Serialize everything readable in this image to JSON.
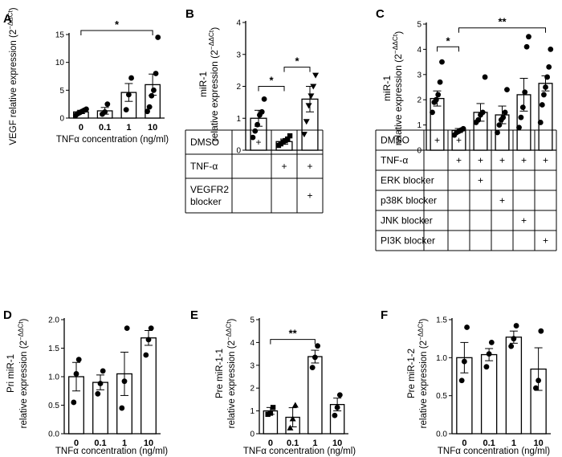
{
  "panels": [
    {
      "letter": "A",
      "ylabel": "VEGF relative expression (2",
      "ysup": "−ΔΔCt",
      "ylabel_tail": ")",
      "xlabel": "TNFα concentration (ng/ml)"
    },
    {
      "letter": "B",
      "ylabel_lines": [
        "miR-1",
        "relative expression (2"
      ],
      "ysup": "−ΔΔCt",
      "ylabel_tail": ")"
    },
    {
      "letter": "C",
      "ylabel_lines": [
        "miR-1",
        "relative expression (2"
      ],
      "ysup": "−ΔΔCt",
      "ylabel_tail": ")"
    },
    {
      "letter": "D",
      "ylabel_lines": [
        "Pri miR-1",
        "relative expression (2"
      ],
      "ysup": "−ΔΔCt",
      "ylabel_tail": ")",
      "xlabel": "TNFα concentration (ng/ml)"
    },
    {
      "letter": "E",
      "ylabel_lines": [
        "Pre miR-1-1",
        "relative expression (2"
      ],
      "ysup": "−ΔΔCt",
      "ylabel_tail": ")",
      "xlabel": "TNFα concentration (ng/ml)"
    },
    {
      "letter": "F",
      "ylabel_lines": [
        "Pre miR-1-2",
        "relative expression (2"
      ],
      "ysup": "−ΔΔCt",
      "ylabel_tail": ")",
      "xlabel": "TNFα concentration (ng/ml)"
    }
  ],
  "table_B": {
    "rows": [
      "DMSO",
      "TNF-α",
      "VEGFR2 blocker"
    ],
    "row_lines": [
      [
        "DMSO"
      ],
      [
        "TNF-α"
      ],
      [
        "VEGFR2",
        "blocker"
      ]
    ],
    "marks": [
      [
        "+",
        "+",
        ""
      ],
      [
        "",
        "+",
        "+"
      ],
      [
        "",
        "",
        "+"
      ]
    ],
    "plus": "+"
  },
  "table_C": {
    "rows": [
      "DMSO",
      "TNF-α",
      "ERK blocker",
      "p38K blocker",
      "JNK blocker",
      "PI3K blocker"
    ],
    "marks": [
      [
        "+",
        "+",
        "",
        "",
        "",
        ""
      ],
      [
        "",
        "+",
        "+",
        "+",
        "+",
        "+"
      ],
      [
        "",
        "",
        "+",
        "",
        "",
        ""
      ],
      [
        "",
        "",
        "",
        "+",
        "",
        ""
      ],
      [
        "",
        "",
        "",
        "",
        "+",
        ""
      ],
      [
        "",
        "",
        "",
        "",
        "",
        "+"
      ]
    ]
  },
  "chart_data": [
    {
      "panel": "A",
      "type": "bar",
      "categories": [
        "0",
        "0.1",
        "1",
        "10"
      ],
      "values": [
        1.1,
        1.3,
        4.6,
        6.0
      ],
      "errors": [
        0.3,
        0.6,
        1.6,
        1.9
      ],
      "points": [
        [
          0.5,
          0.8,
          1.0,
          1.2,
          1.4,
          1.6
        ],
        [
          0.7,
          1.1,
          2.5
        ],
        [
          1.5,
          4.2,
          7.2
        ],
        [
          1.2,
          2.0,
          4.0,
          5.0,
          8.0,
          14.5
        ]
      ],
      "ylim": [
        0,
        15
      ],
      "yticks": [
        "0",
        "5",
        "10",
        "15"
      ],
      "xlabel": "TNFα concentration (ng/ml)",
      "significance": [
        {
          "from": 0,
          "to": 3,
          "label": "*"
        }
      ]
    },
    {
      "panel": "B",
      "type": "bar",
      "categories": [
        "",
        "",
        ""
      ],
      "values": [
        1.0,
        0.27,
        1.6
      ],
      "errors": [
        0.25,
        0.08,
        0.4
      ],
      "points": [
        [
          0.4,
          0.6,
          0.8,
          1.1,
          1.2,
          1.6
        ],
        [
          0.15,
          0.2,
          0.25,
          0.3,
          0.35,
          0.45
        ],
        [
          0.5,
          0.9,
          1.4,
          1.7,
          2.0,
          2.35
        ]
      ],
      "point_shapes": [
        "circle",
        "square",
        "triangle-down"
      ],
      "ylim": [
        0,
        4
      ],
      "yticks": [
        "0",
        "1",
        "2",
        "3",
        "4"
      ],
      "significance": [
        {
          "from": 0,
          "to": 1,
          "label": "*"
        },
        {
          "from": 1,
          "to": 2,
          "label": "*"
        }
      ]
    },
    {
      "panel": "C",
      "type": "bar",
      "categories": [
        "",
        "",
        "",
        "",
        "",
        ""
      ],
      "values": [
        2.05,
        0.78,
        1.5,
        1.4,
        2.2,
        2.65
      ],
      "errors": [
        0.3,
        0.08,
        0.35,
        0.35,
        0.65,
        0.3
      ],
      "points": [
        [
          1.5,
          1.9,
          2.0,
          2.2,
          2.7,
          3.5
        ],
        [
          0.6,
          0.7,
          0.75,
          0.8,
          0.85
        ],
        [
          1.1,
          1.2,
          1.4,
          1.5,
          2.9
        ],
        [
          0.7,
          1.0,
          1.2,
          1.3,
          1.5,
          2.4
        ],
        [
          0.9,
          1.3,
          1.7,
          2.3,
          4.1,
          4.5
        ],
        [
          1.1,
          1.8,
          2.2,
          2.5,
          2.9,
          3.3,
          4.0
        ]
      ],
      "ylim": [
        0,
        5
      ],
      "yticks": [
        "0",
        "1",
        "2",
        "3",
        "4",
        "5"
      ],
      "significance": [
        {
          "from": 0,
          "to": 1,
          "label": "*"
        },
        {
          "from": 1,
          "to": 5,
          "label": "**"
        }
      ]
    },
    {
      "panel": "D",
      "type": "bar",
      "categories": [
        "0",
        "0.1",
        "1",
        "10"
      ],
      "values": [
        1.0,
        0.9,
        1.05,
        1.68
      ],
      "errors": [
        0.25,
        0.13,
        0.38,
        0.13
      ],
      "points": [
        [
          0.55,
          1.05,
          1.3
        ],
        [
          0.7,
          0.88,
          1.1
        ],
        [
          0.45,
          0.92,
          1.85
        ],
        [
          1.38,
          1.65,
          1.85
        ]
      ],
      "ylim": [
        0,
        2.0
      ],
      "yticks": [
        "0.0",
        "0.5",
        "1.0",
        "1.5",
        "2.0"
      ],
      "xlabel": "TNFα concentration (ng/ml)"
    },
    {
      "panel": "E",
      "type": "bar",
      "categories": [
        "0",
        "0.1",
        "1",
        "10"
      ],
      "values": [
        1.0,
        0.72,
        3.38,
        1.28
      ],
      "errors": [
        0.15,
        0.42,
        0.28,
        0.28
      ],
      "points": [
        [
          0.85,
          0.9,
          1.15
        ],
        [
          0.25,
          0.65,
          1.25
        ],
        [
          2.9,
          3.35,
          3.85
        ],
        [
          0.8,
          1.15,
          1.7
        ]
      ],
      "point_shapes": [
        "square",
        "triangle-up",
        "circle",
        "circle"
      ],
      "ylim": [
        0,
        5
      ],
      "yticks": [
        "0",
        "1",
        "2",
        "3",
        "4",
        "5"
      ],
      "xlabel": "TNFα concentration (ng/ml)",
      "significance": [
        {
          "from": 0,
          "to": 2,
          "label": "**"
        }
      ]
    },
    {
      "panel": "F",
      "type": "bar",
      "categories": [
        "0",
        "0.1",
        "1",
        "10"
      ],
      "values": [
        1.0,
        1.04,
        1.27,
        0.85
      ],
      "errors": [
        0.2,
        0.08,
        0.08,
        0.28
      ],
      "points": [
        [
          0.7,
          0.95,
          1.4
        ],
        [
          0.88,
          1.05,
          1.2
        ],
        [
          1.15,
          1.25,
          1.42
        ],
        [
          0.6,
          0.7,
          1.35
        ]
      ],
      "ylim": [
        0,
        1.5
      ],
      "yticks": [
        "0.0",
        "0.5",
        "1.0",
        "1.5"
      ],
      "xlabel": "TNFα concentration (ng/ml)"
    }
  ]
}
